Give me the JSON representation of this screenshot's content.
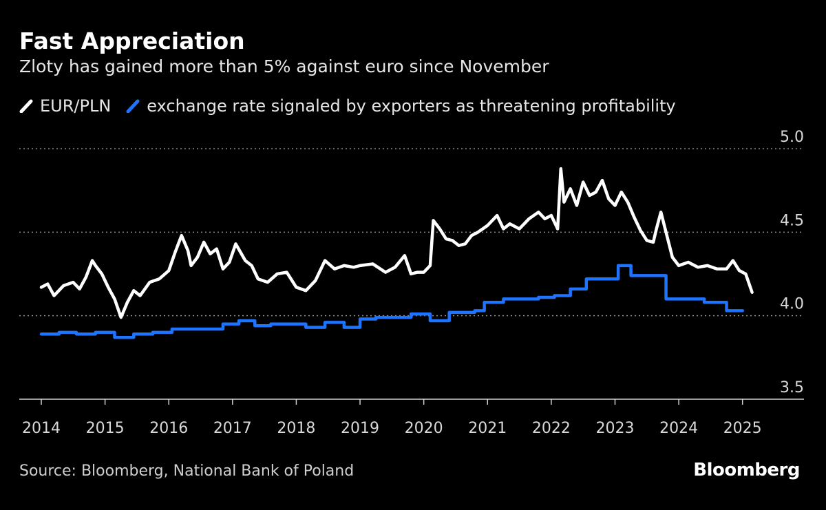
{
  "header": {
    "title": "Fast Appreciation",
    "subtitle": "Zloty has gained more than 5% against euro since November"
  },
  "legend": [
    {
      "label": "EUR/PLN",
      "color": "#ffffff"
    },
    {
      "label": "exchange rate signaled by exporters as threatening profitability",
      "color": "#1e73ff"
    }
  ],
  "footer": {
    "source": "Source: Bloomberg, National Bank of Poland",
    "brand": "Bloomberg"
  },
  "chart_data": {
    "type": "line",
    "title": "Fast Appreciation",
    "subtitle": "Zloty has gained more than 5% against euro since November",
    "xlabel": "",
    "ylabel": "",
    "xlim": [
      2014,
      2025.5
    ],
    "ylim": [
      3.5,
      5.0
    ],
    "yticks": [
      3.5,
      4.0,
      4.5,
      5.0
    ],
    "ytick_labels": [
      "3.5",
      "4.0",
      "4.5",
      "5.0"
    ],
    "xticks": [
      2014,
      2015,
      2016,
      2017,
      2018,
      2019,
      2020,
      2021,
      2022,
      2023,
      2024,
      2025
    ],
    "xtick_labels": [
      "2014",
      "2015",
      "2016",
      "2017",
      "2018",
      "2019",
      "2020",
      "2021",
      "2022",
      "2023",
      "2024",
      "2025"
    ],
    "grid": "horizontal dotted",
    "legend_position": "top-left",
    "series": [
      {
        "name": "EUR/PLN",
        "color": "#ffffff",
        "x": [
          2014.0,
          2014.1,
          2014.2,
          2014.35,
          2014.5,
          2014.6,
          2014.7,
          2014.8,
          2014.85,
          2014.95,
          2015.05,
          2015.15,
          2015.25,
          2015.35,
          2015.45,
          2015.55,
          2015.7,
          2015.85,
          2016.0,
          2016.1,
          2016.2,
          2016.3,
          2016.35,
          2016.45,
          2016.55,
          2016.65,
          2016.75,
          2016.85,
          2016.95,
          2017.05,
          2017.2,
          2017.3,
          2017.4,
          2017.55,
          2017.7,
          2017.85,
          2018.0,
          2018.15,
          2018.3,
          2018.45,
          2018.6,
          2018.75,
          2018.9,
          2019.0,
          2019.2,
          2019.4,
          2019.55,
          2019.7,
          2019.8,
          2019.9,
          2020.0,
          2020.1,
          2020.15,
          2020.25,
          2020.35,
          2020.45,
          2020.55,
          2020.65,
          2020.75,
          2020.85,
          2021.0,
          2021.15,
          2021.25,
          2021.35,
          2021.5,
          2021.65,
          2021.8,
          2021.9,
          2022.0,
          2022.1,
          2022.15,
          2022.2,
          2022.3,
          2022.4,
          2022.5,
          2022.6,
          2022.7,
          2022.8,
          2022.9,
          2023.0,
          2023.1,
          2023.2,
          2023.3,
          2023.4,
          2023.5,
          2023.6,
          2023.65,
          2023.72,
          2023.8,
          2023.9,
          2024.0,
          2024.15,
          2024.3,
          2024.45,
          2024.6,
          2024.75,
          2024.85,
          2024.95,
          2025.05,
          2025.15
        ],
        "values": [
          4.17,
          4.19,
          4.12,
          4.18,
          4.2,
          4.16,
          4.23,
          4.33,
          4.3,
          4.25,
          4.17,
          4.1,
          3.99,
          4.08,
          4.15,
          4.12,
          4.2,
          4.22,
          4.27,
          4.38,
          4.48,
          4.39,
          4.3,
          4.35,
          4.44,
          4.37,
          4.4,
          4.28,
          4.32,
          4.43,
          4.33,
          4.3,
          4.22,
          4.2,
          4.25,
          4.26,
          4.17,
          4.15,
          4.21,
          4.33,
          4.28,
          4.3,
          4.29,
          4.3,
          4.31,
          4.26,
          4.29,
          4.36,
          4.25,
          4.26,
          4.26,
          4.3,
          4.57,
          4.52,
          4.46,
          4.45,
          4.42,
          4.43,
          4.48,
          4.5,
          4.54,
          4.6,
          4.52,
          4.55,
          4.52,
          4.58,
          4.62,
          4.58,
          4.6,
          4.52,
          4.88,
          4.68,
          4.76,
          4.66,
          4.8,
          4.72,
          4.74,
          4.81,
          4.7,
          4.66,
          4.74,
          4.68,
          4.59,
          4.51,
          4.45,
          4.44,
          4.52,
          4.62,
          4.5,
          4.35,
          4.3,
          4.32,
          4.29,
          4.3,
          4.28,
          4.28,
          4.33,
          4.27,
          4.25,
          4.14
        ]
      },
      {
        "name": "exchange rate signaled by exporters as threatening profitability",
        "color": "#1e73ff",
        "x": [
          2014.0,
          2014.28,
          2014.55,
          2014.85,
          2015.15,
          2015.45,
          2015.75,
          2016.05,
          2016.35,
          2016.6,
          2016.85,
          2017.1,
          2017.35,
          2017.6,
          2017.9,
          2018.15,
          2018.45,
          2018.75,
          2019.0,
          2019.25,
          2019.5,
          2019.8,
          2020.1,
          2020.4,
          2020.8,
          2020.95,
          2021.25,
          2021.55,
          2021.8,
          2022.05,
          2022.3,
          2022.55,
          2022.8,
          2023.05,
          2023.25,
          2023.5,
          2023.8,
          2024.1,
          2024.4,
          2024.75,
          2025.0
        ],
        "values": [
          3.89,
          3.9,
          3.89,
          3.9,
          3.87,
          3.89,
          3.9,
          3.92,
          3.92,
          3.92,
          3.95,
          3.97,
          3.94,
          3.95,
          3.95,
          3.93,
          3.96,
          3.93,
          3.98,
          3.99,
          3.99,
          4.01,
          3.97,
          4.02,
          4.03,
          4.08,
          4.1,
          4.1,
          4.11,
          4.12,
          4.16,
          4.22,
          4.22,
          4.3,
          4.24,
          4.24,
          4.1,
          4.1,
          4.08,
          4.03,
          4.03
        ]
      }
    ]
  }
}
